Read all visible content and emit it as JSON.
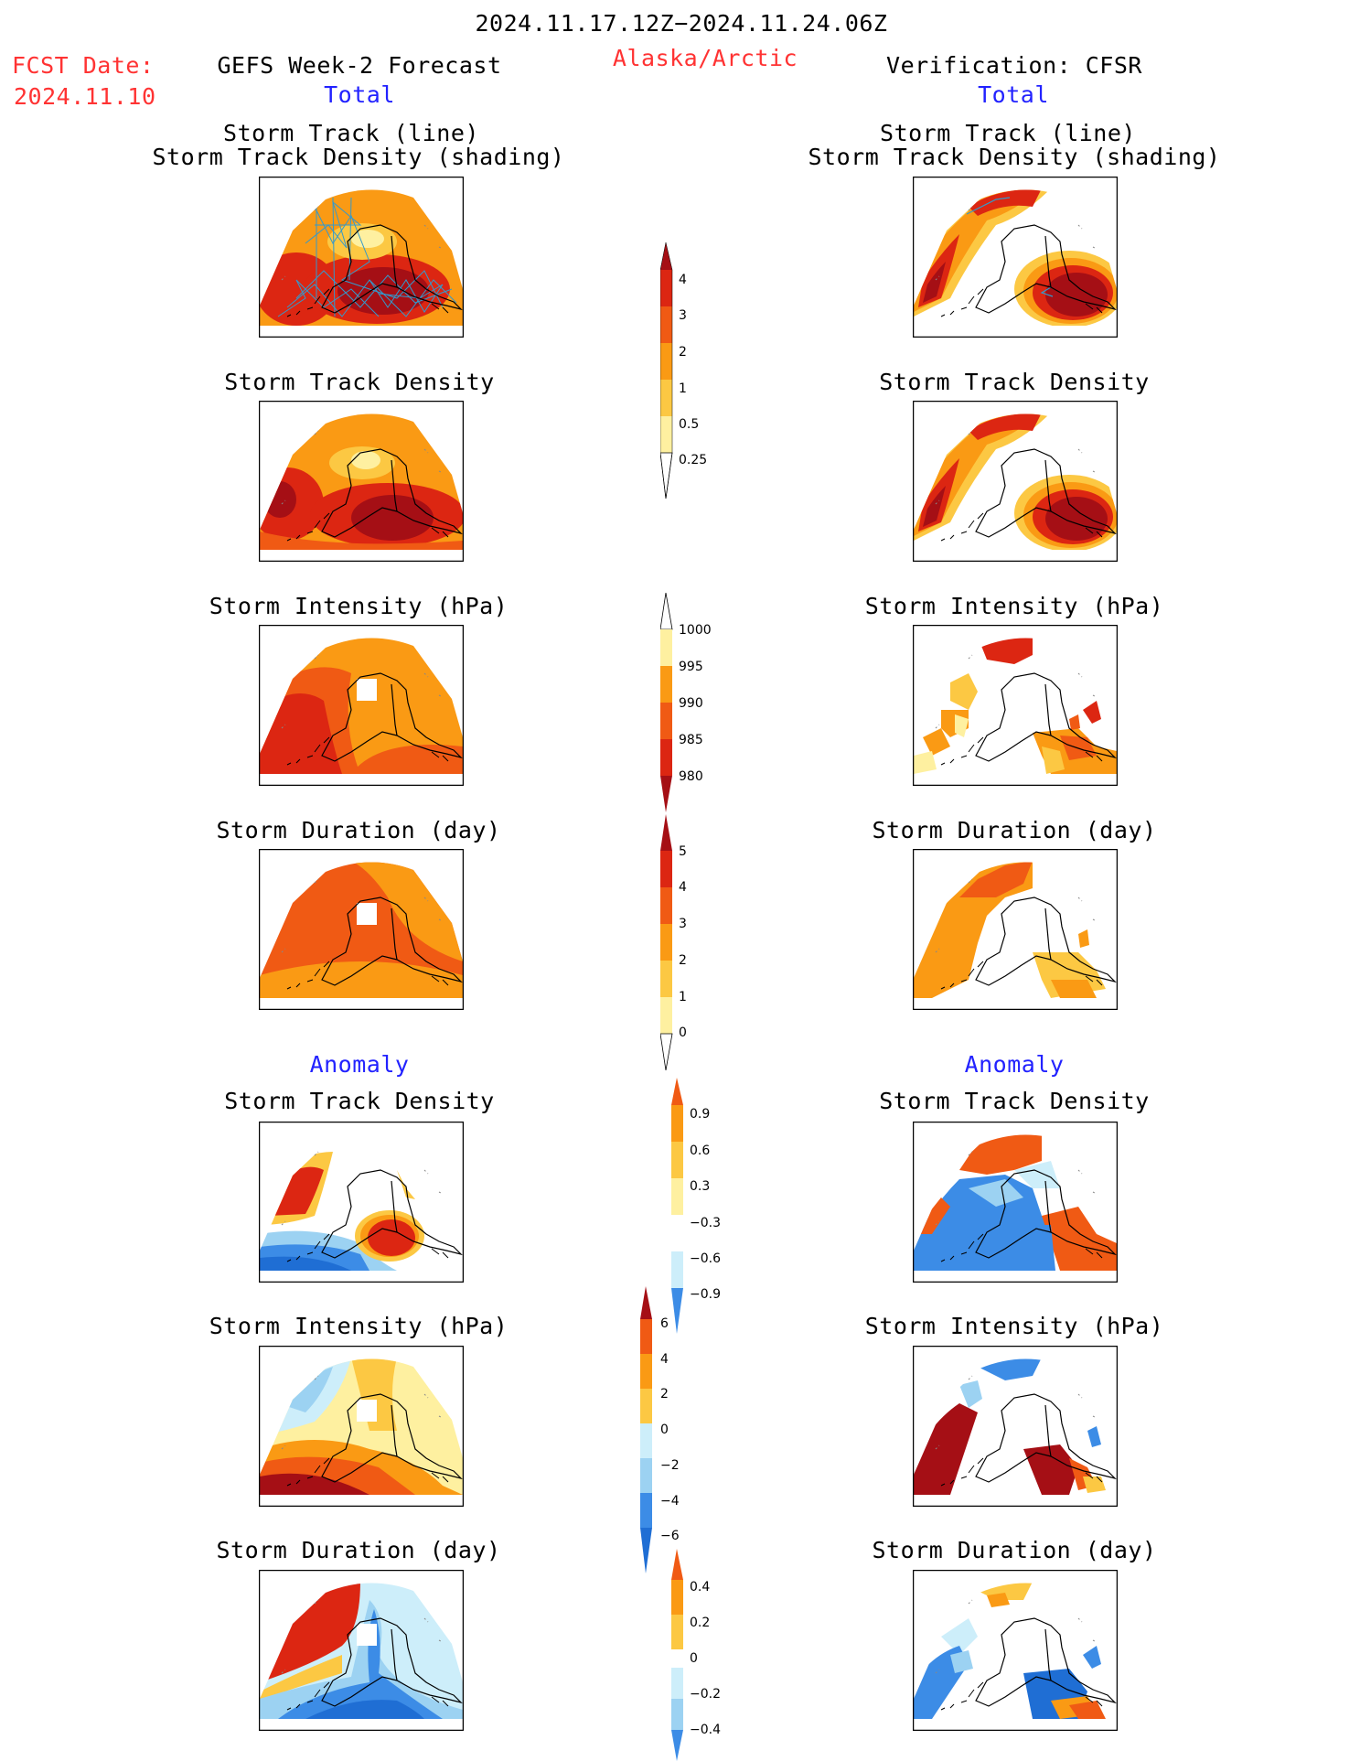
{
  "header": {
    "date_range": "2024.11.17.12Z−2024.11.24.06Z",
    "fcst_label": "FCST Date:",
    "fcst_date": "2024.11.10",
    "left_title": "GEFS Week-2 Forecast",
    "region": "Alaska/Arctic",
    "right_title": "Verification: CFSR",
    "total_left": "Total",
    "total_right": "Total"
  },
  "sections": {
    "anomaly_left": "Anomaly",
    "anomaly_right": "Anomaly"
  },
  "panels": {
    "track_line_title": "Storm Track (line)",
    "track_density_shading_title": "Storm Track Density (shading)",
    "density_title": "Storm Track Density",
    "intensity_title": "Storm Intensity (hPa)",
    "duration_title": "Storm Duration (day)"
  },
  "colorbars": {
    "density": [
      "4",
      "3",
      "2",
      "1",
      "0.5",
      "0.25"
    ],
    "intensity": [
      "1000",
      "995",
      "990",
      "985",
      "980"
    ],
    "duration": [
      "5",
      "4",
      "3",
      "2",
      "1",
      "0"
    ],
    "density_anom": [
      "0.9",
      "0.6",
      "0.3",
      "−0.3",
      "−0.6",
      "−0.9"
    ],
    "intensity_anom": [
      "6",
      "4",
      "2",
      "0",
      "−2",
      "−4",
      "−6"
    ],
    "duration_anom": [
      "0.4",
      "0.2",
      "0",
      "−0.2",
      "−0.4"
    ]
  },
  "colors": {
    "dark_red": "#a50f15",
    "red": "#dc2612",
    "orange_red": "#f05a14",
    "orange": "#fa9a14",
    "light_orange": "#fcc843",
    "yellow": "#fef0a0",
    "blue_dark": "#1f6ed4",
    "blue": "#3c8ce6",
    "blue_light": "#9cd2f2",
    "cyan_light": "#cdeefa",
    "title_red": "#ff3333",
    "title_blue": "#2222ff",
    "track_line": "#3399cc"
  }
}
